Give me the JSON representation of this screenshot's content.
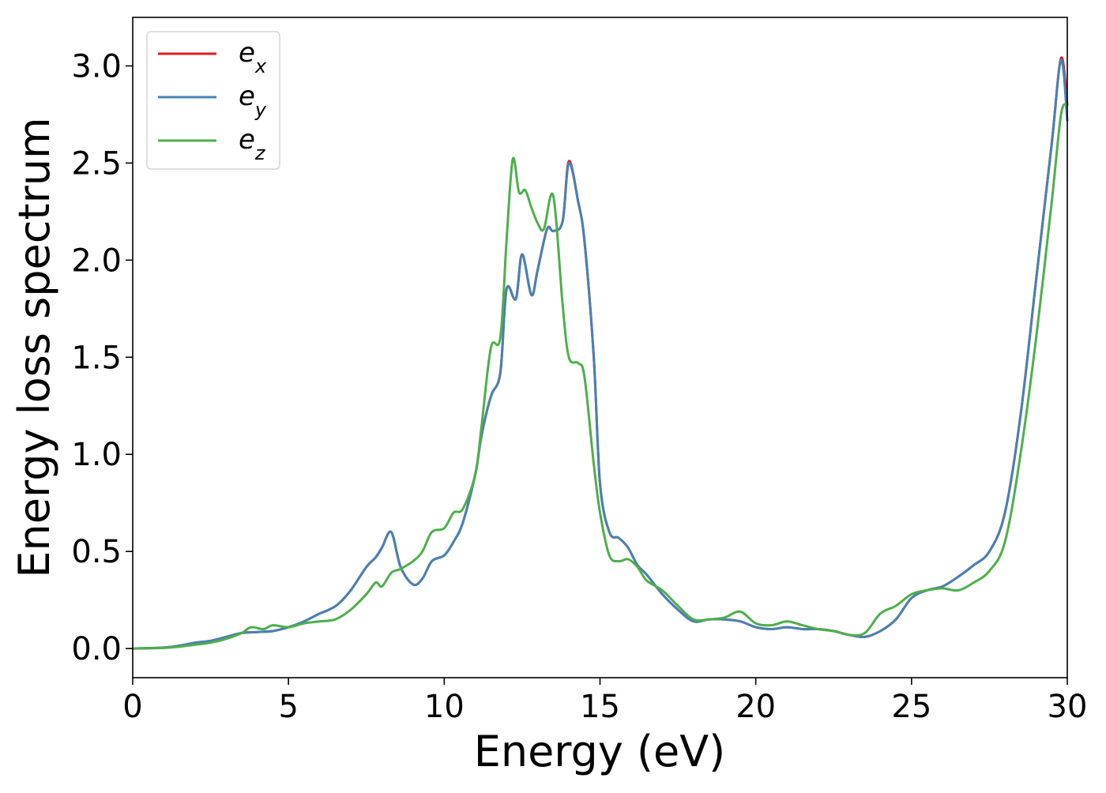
{
  "chart_data": {
    "type": "line",
    "title": "",
    "xlabel": "Energy (eV)",
    "ylabel": "Energy loss spectrum",
    "xlim": [
      0,
      30
    ],
    "ylim": [
      -0.15,
      3.25
    ],
    "xticks": [
      0,
      5,
      10,
      15,
      20,
      25,
      30
    ],
    "yticks": [
      0.0,
      0.5,
      1.0,
      1.5,
      2.0,
      2.5,
      3.0
    ],
    "xtick_labels": [
      "0",
      "5",
      "10",
      "15",
      "20",
      "25",
      "30"
    ],
    "ytick_labels": [
      "0.0",
      "0.5",
      "1.0",
      "1.5",
      "2.0",
      "2.5",
      "3.0"
    ],
    "grid": false,
    "legend_position": "top-left",
    "series": [
      {
        "name": "e",
        "subscript": "x",
        "color": "#e41a1c",
        "x": [
          0,
          1,
          1.5,
          2,
          2.5,
          3,
          3.5,
          4,
          4.5,
          5,
          5.5,
          6,
          6.3,
          6.6,
          7,
          7.5,
          7.8,
          8,
          8.3,
          8.6,
          9,
          9.3,
          9.6,
          10,
          10.3,
          10.6,
          11,
          11.2,
          11.5,
          11.8,
          12,
          12.3,
          12.5,
          12.8,
          13,
          13.3,
          13.5,
          13.8,
          14,
          14.3,
          14.5,
          14.8,
          15,
          15.3,
          15.6,
          15.9,
          16.2,
          16.5,
          17,
          17.5,
          18,
          18.5,
          19,
          19.5,
          20,
          20.5,
          21,
          21.5,
          22,
          22.5,
          23,
          23.5,
          24,
          24.5,
          25,
          25.5,
          26,
          26.5,
          27,
          27.5,
          28,
          28.5,
          29,
          29.5,
          29.8,
          30
        ],
        "values": [
          0,
          0.005,
          0.015,
          0.03,
          0.04,
          0.06,
          0.08,
          0.085,
          0.09,
          0.11,
          0.14,
          0.18,
          0.2,
          0.23,
          0.3,
          0.42,
          0.47,
          0.52,
          0.6,
          0.42,
          0.33,
          0.36,
          0.45,
          0.48,
          0.55,
          0.65,
          0.9,
          1.1,
          1.3,
          1.42,
          1.85,
          1.8,
          2.03,
          1.82,
          1.95,
          2.16,
          2.15,
          2.2,
          2.51,
          2.3,
          2.1,
          1.5,
          0.85,
          0.6,
          0.57,
          0.52,
          0.43,
          0.38,
          0.28,
          0.2,
          0.14,
          0.15,
          0.15,
          0.14,
          0.11,
          0.1,
          0.11,
          0.1,
          0.1,
          0.09,
          0.07,
          0.06,
          0.09,
          0.15,
          0.26,
          0.3,
          0.32,
          0.37,
          0.43,
          0.5,
          0.7,
          1.2,
          1.9,
          2.6,
          3.04,
          2.8
        ]
      },
      {
        "name": "e",
        "subscript": "y",
        "color": "#4682b4",
        "x": [
          0,
          1,
          1.5,
          2,
          2.5,
          3,
          3.5,
          4,
          4.5,
          5,
          5.5,
          6,
          6.3,
          6.6,
          7,
          7.5,
          7.8,
          8,
          8.3,
          8.6,
          9,
          9.3,
          9.6,
          10,
          10.3,
          10.6,
          11,
          11.2,
          11.5,
          11.8,
          12,
          12.3,
          12.5,
          12.8,
          13,
          13.3,
          13.5,
          13.8,
          14,
          14.3,
          14.5,
          14.8,
          15,
          15.3,
          15.6,
          15.9,
          16.2,
          16.5,
          17,
          17.5,
          18,
          18.5,
          19,
          19.5,
          20,
          20.5,
          21,
          21.5,
          22,
          22.5,
          23,
          23.5,
          24,
          24.5,
          25,
          25.5,
          26,
          26.5,
          27,
          27.5,
          28,
          28.5,
          29,
          29.5,
          29.8,
          30
        ],
        "values": [
          0,
          0.005,
          0.015,
          0.03,
          0.04,
          0.06,
          0.08,
          0.085,
          0.09,
          0.11,
          0.14,
          0.18,
          0.2,
          0.23,
          0.3,
          0.42,
          0.47,
          0.52,
          0.6,
          0.42,
          0.33,
          0.36,
          0.45,
          0.48,
          0.55,
          0.65,
          0.9,
          1.1,
          1.3,
          1.42,
          1.85,
          1.8,
          2.03,
          1.82,
          1.95,
          2.16,
          2.15,
          2.2,
          2.5,
          2.3,
          2.1,
          1.5,
          0.85,
          0.6,
          0.57,
          0.52,
          0.43,
          0.38,
          0.28,
          0.2,
          0.14,
          0.15,
          0.15,
          0.14,
          0.11,
          0.1,
          0.11,
          0.1,
          0.1,
          0.09,
          0.07,
          0.06,
          0.09,
          0.15,
          0.26,
          0.3,
          0.32,
          0.37,
          0.43,
          0.5,
          0.7,
          1.2,
          1.9,
          2.6,
          3.03,
          2.72
        ]
      },
      {
        "name": "e",
        "subscript": "z",
        "color": "#4daf4a",
        "x": [
          0,
          1,
          1.5,
          2,
          2.5,
          3,
          3.5,
          3.8,
          4.2,
          4.5,
          5,
          5.5,
          6,
          6.5,
          7,
          7.5,
          7.8,
          8,
          8.3,
          8.6,
          9,
          9.3,
          9.6,
          10,
          10.3,
          10.6,
          11,
          11.2,
          11.5,
          11.8,
          12,
          12.2,
          12.4,
          12.6,
          12.8,
          13,
          13.2,
          13.5,
          13.8,
          14,
          14.3,
          14.5,
          14.8,
          15,
          15.3,
          15.6,
          15.9,
          16.2,
          16.5,
          17,
          17.5,
          18,
          18.5,
          19,
          19.5,
          20,
          20.5,
          21,
          21.5,
          22,
          22.5,
          23,
          23.5,
          24,
          24.5,
          25,
          25.5,
          26,
          26.5,
          27,
          27.5,
          28,
          28.5,
          29,
          29.5,
          29.8,
          30
        ],
        "values": [
          0,
          0.003,
          0.01,
          0.02,
          0.03,
          0.05,
          0.08,
          0.11,
          0.1,
          0.12,
          0.11,
          0.13,
          0.14,
          0.15,
          0.2,
          0.28,
          0.34,
          0.32,
          0.39,
          0.41,
          0.45,
          0.5,
          0.6,
          0.62,
          0.7,
          0.72,
          0.9,
          1.15,
          1.55,
          1.6,
          2.1,
          2.52,
          2.35,
          2.36,
          2.27,
          2.19,
          2.16,
          2.33,
          1.77,
          1.5,
          1.47,
          1.4,
          0.95,
          0.7,
          0.48,
          0.45,
          0.46,
          0.42,
          0.35,
          0.3,
          0.22,
          0.15,
          0.15,
          0.16,
          0.19,
          0.13,
          0.12,
          0.14,
          0.12,
          0.1,
          0.09,
          0.07,
          0.08,
          0.18,
          0.22,
          0.28,
          0.3,
          0.31,
          0.3,
          0.34,
          0.4,
          0.55,
          1.0,
          1.6,
          2.3,
          2.75,
          2.8
        ]
      }
    ]
  }
}
